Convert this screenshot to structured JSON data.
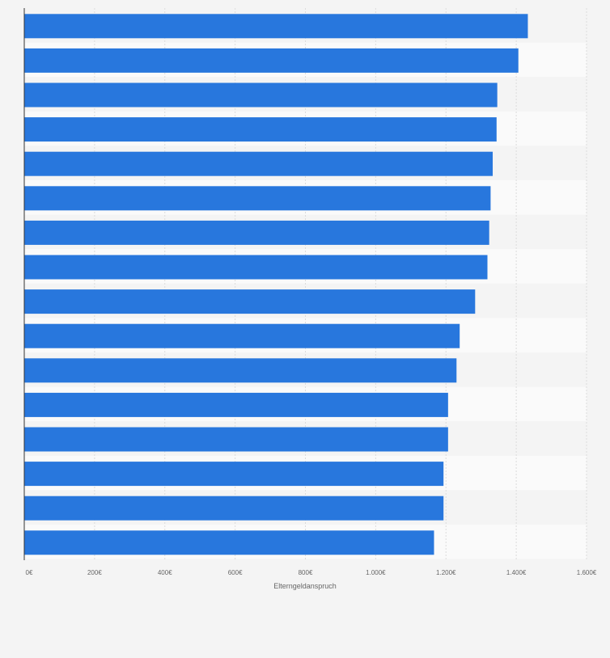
{
  "chart_data": {
    "type": "bar",
    "orientation": "horizontal",
    "title": "",
    "xlabel": "Elterngeldanspruch",
    "ylabel": "",
    "currency_suffix": "€",
    "xlim": [
      0,
      1600
    ],
    "x_ticks": [
      0,
      200,
      400,
      600,
      800,
      1000,
      1200,
      1400,
      1600
    ],
    "x_tick_labels": [
      "0€",
      "200€",
      "400€",
      "600€",
      "800€",
      "1.000€",
      "1.200€",
      "1.400€",
      "1.600€"
    ],
    "categories": [
      "",
      "",
      "",
      "",
      "",
      "",
      "",
      "",
      "",
      "",
      "",
      "",
      "",
      "",
      "",
      ""
    ],
    "values": [
      1433,
      1406,
      1346,
      1344,
      1333,
      1327,
      1323,
      1318,
      1283,
      1239,
      1230,
      1206,
      1206,
      1193,
      1193,
      1166
    ],
    "bar_color": "#2877dd",
    "grid": true,
    "legend": "none"
  }
}
